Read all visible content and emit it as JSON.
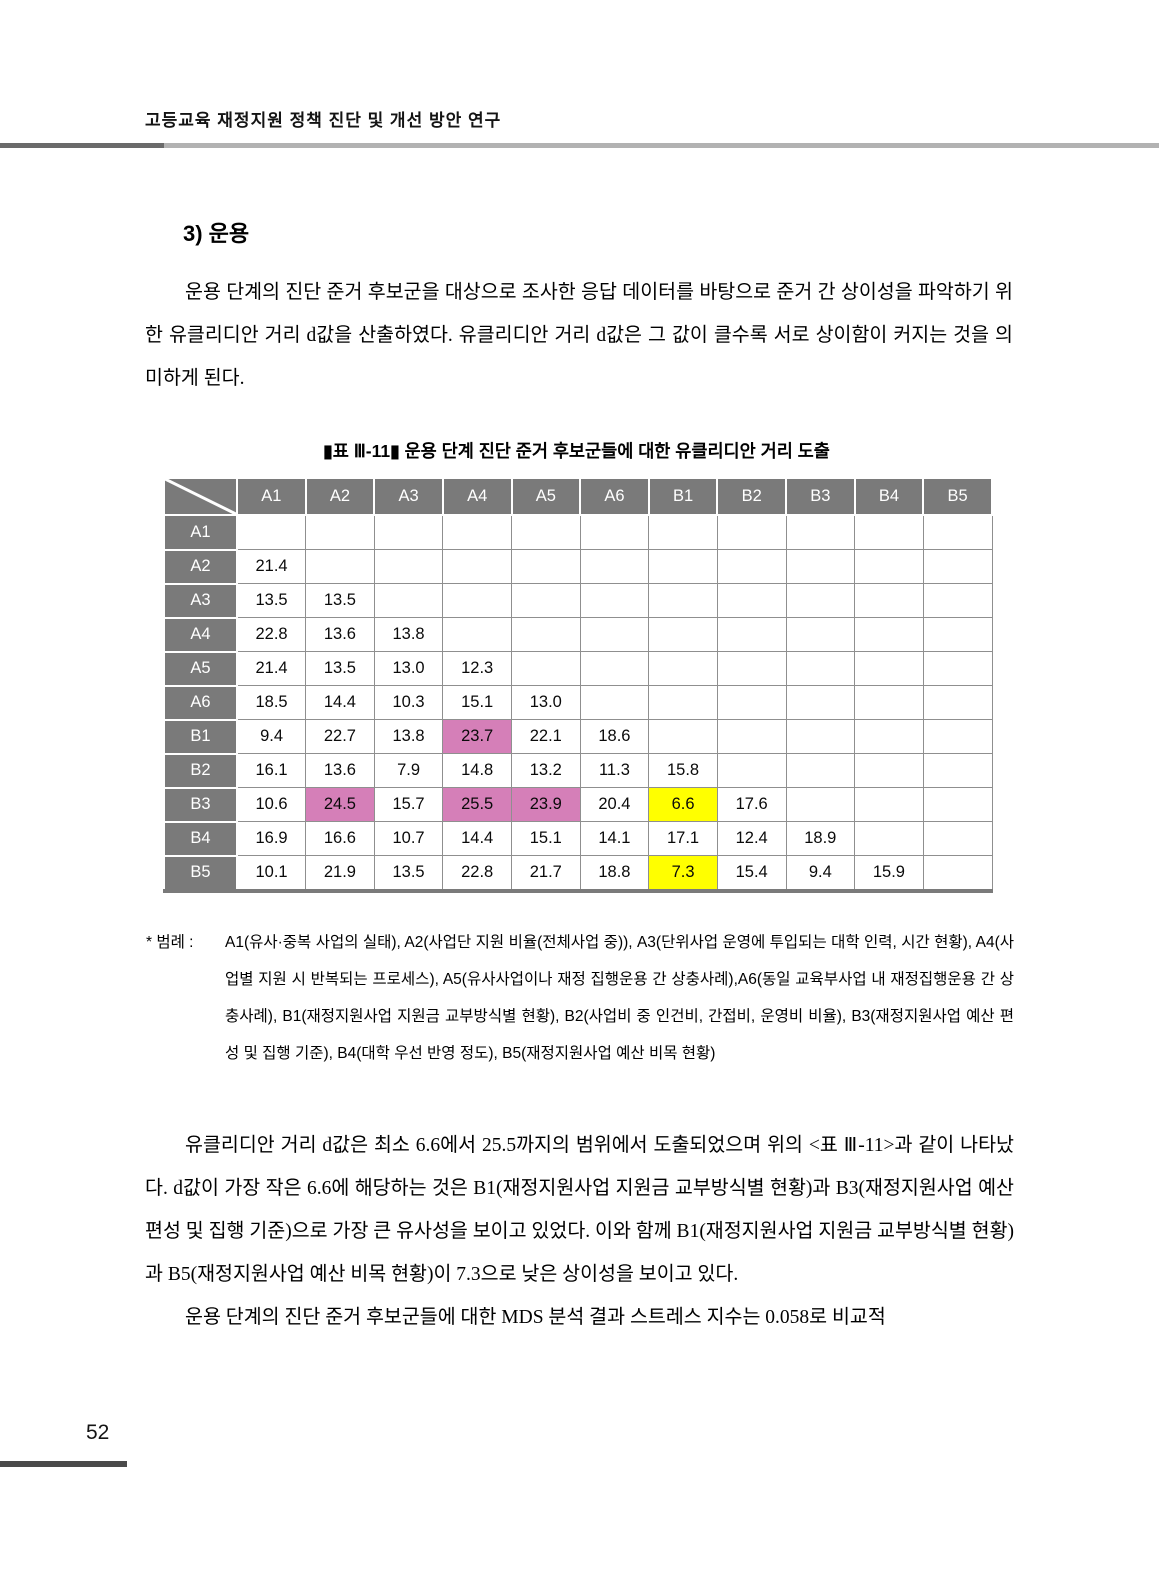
{
  "header": {
    "title": "고등교육 재정지원 정책 진단 및 개선 방안 연구"
  },
  "section": {
    "title": "3) 운용"
  },
  "intro_paragraph": "운용 단계의 진단 준거 후보군을 대상으로 조사한 응답 데이터를 바탕으로 준거 간 상이성을 파악하기 위한 유클리디안 거리 d값을 산출하였다. 유클리디안 거리 d값은 그 값이 클수록 서로 상이함이 커지는 것을 의미하게 된다.",
  "table": {
    "caption": "▮표 Ⅲ-11▮  운용 단계 진단 준거 후보군들에 대한 유클리디안 거리 도출",
    "columns": [
      "A1",
      "A2",
      "A3",
      "A4",
      "A5",
      "A6",
      "B1",
      "B2",
      "B3",
      "B4",
      "B5"
    ],
    "rows": [
      {
        "label": "A1",
        "values": [
          "",
          "",
          "",
          "",
          "",
          "",
          "",
          "",
          "",
          "",
          ""
        ]
      },
      {
        "label": "A2",
        "values": [
          "21.4",
          "",
          "",
          "",
          "",
          "",
          "",
          "",
          "",
          "",
          ""
        ]
      },
      {
        "label": "A3",
        "values": [
          "13.5",
          "13.5",
          "",
          "",
          "",
          "",
          "",
          "",
          "",
          "",
          ""
        ]
      },
      {
        "label": "A4",
        "values": [
          "22.8",
          "13.6",
          "13.8",
          "",
          "",
          "",
          "",
          "",
          "",
          "",
          ""
        ]
      },
      {
        "label": "A5",
        "values": [
          "21.4",
          "13.5",
          "13.0",
          "12.3",
          "",
          "",
          "",
          "",
          "",
          "",
          ""
        ]
      },
      {
        "label": "A6",
        "values": [
          "18.5",
          "14.4",
          "10.3",
          "15.1",
          "13.0",
          "",
          "",
          "",
          "",
          "",
          ""
        ]
      },
      {
        "label": "B1",
        "values": [
          "9.4",
          "22.7",
          "13.8",
          "23.7",
          "22.1",
          "18.6",
          "",
          "",
          "",
          "",
          ""
        ]
      },
      {
        "label": "B2",
        "values": [
          "16.1",
          "13.6",
          "7.9",
          "14.8",
          "13.2",
          "11.3",
          "15.8",
          "",
          "",
          "",
          ""
        ]
      },
      {
        "label": "B3",
        "values": [
          "10.6",
          "24.5",
          "15.7",
          "25.5",
          "23.9",
          "20.4",
          "6.6",
          "17.6",
          "",
          "",
          ""
        ]
      },
      {
        "label": "B4",
        "values": [
          "16.9",
          "16.6",
          "10.7",
          "14.4",
          "15.1",
          "14.1",
          "17.1",
          "12.4",
          "18.9",
          "",
          ""
        ]
      },
      {
        "label": "B5",
        "values": [
          "10.1",
          "21.9",
          "13.5",
          "22.8",
          "21.7",
          "18.8",
          "7.3",
          "15.4",
          "9.4",
          "15.9",
          ""
        ]
      }
    ],
    "highlights": [
      {
        "row": "B1",
        "col": "A4",
        "color": "pink"
      },
      {
        "row": "B3",
        "col": "A2",
        "color": "pink"
      },
      {
        "row": "B3",
        "col": "A4",
        "color": "pink"
      },
      {
        "row": "B3",
        "col": "A5",
        "color": "pink"
      },
      {
        "row": "B3",
        "col": "B1",
        "color": "yellow"
      },
      {
        "row": "B5",
        "col": "B1",
        "color": "yellow"
      }
    ],
    "colors": {
      "pink": "#d57fb8",
      "yellow": "#ffff00",
      "header_bg": "#7a7a7a",
      "header_text": "#ffffff"
    }
  },
  "legend": {
    "prefix": "* 범례 :",
    "text": "A1(유사·중복 사업의 실태), A2(사업단 지원 비율(전체사업 중)), A3(단위사업 운영에 투입되는 대학 인력, 시간 현황), A4(사업별 지원 시 반복되는 프로세스), A5(유사사업이나 재정 집행운용 간 상충사례),A6(동일 교육부사업 내 재정집행운용 간 상충사례), B1(재정지원사업 지원금 교부방식별 현황), B2(사업비 중 인건비, 간접비, 운영비 비율), B3(재정지원사업 예산 편성 및 집행 기준), B4(대학 우선 반영 정도), B5(재정지원사업 예산 비목 현황)"
  },
  "body_paragraphs": [
    "유클리디안 거리 d값은 최소 6.6에서 25.5까지의 범위에서 도출되었으며 위의 <표 Ⅲ-11>과 같이 나타났다. d값이 가장 작은 6.6에 해당하는 것은 B1(재정지원사업 지원금 교부방식별 현황)과 B3(재정지원사업 예산 편성 및 집행 기준)으로 가장 큰 유사성을 보이고 있었다. 이와 함께 B1(재정지원사업 지원금 교부방식별 현황)과 B5(재정지원사업 예산 비목 현황)이 7.3으로 낮은 상이성을 보이고 있다.",
    "운용 단계의 진단 준거 후보군들에 대한 MDS 분석 결과 스트레스 지수는 0.058로 비교적"
  ],
  "footer": {
    "page_number": "52"
  }
}
